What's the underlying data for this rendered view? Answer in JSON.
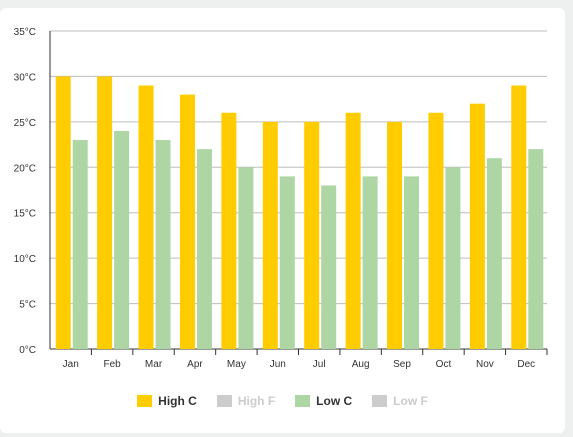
{
  "chart_data": {
    "type": "bar",
    "categories": [
      "Jan",
      "Feb",
      "Mar",
      "Apr",
      "May",
      "Jun",
      "Jul",
      "Aug",
      "Sep",
      "Oct",
      "Nov",
      "Dec"
    ],
    "series": [
      {
        "name": "High C",
        "values": [
          30,
          30,
          29,
          28,
          26,
          25,
          25,
          26,
          25,
          26,
          27,
          29
        ],
        "color": "#ffcc00",
        "visible": true
      },
      {
        "name": "Low C",
        "values": [
          23,
          24,
          23,
          22,
          20,
          19,
          18,
          19,
          19,
          20,
          21,
          22
        ],
        "color": "#aed6a4",
        "visible": true
      }
    ],
    "yticks": [
      "0°C",
      "5°C",
      "10°C",
      "15°C",
      "20°C",
      "25°C",
      "30°C",
      "35°C"
    ],
    "ylim": [
      0,
      35
    ],
    "grid": true,
    "legend_position": "bottom"
  },
  "legend": [
    {
      "label": "High C",
      "color": "#ffcc00",
      "active": true
    },
    {
      "label": "High F",
      "color": "#cccccc",
      "active": false
    },
    {
      "label": "Low C",
      "color": "#aed6a4",
      "active": true
    },
    {
      "label": "Low F",
      "color": "#cccccc",
      "active": false
    }
  ]
}
